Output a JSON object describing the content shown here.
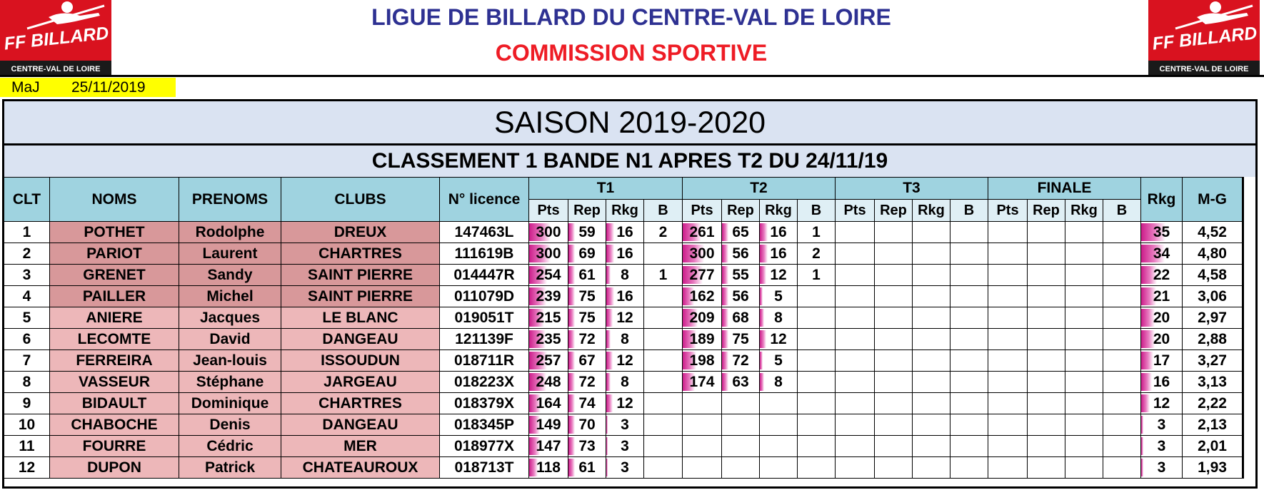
{
  "header": {
    "title": "LIGUE DE BILLARD DU CENTRE-VAL DE LOIRE",
    "subtitle": "COMMISSION SPORTIVE",
    "logo_main": "FF BILLARD",
    "logo_sub": "CENTRE-VAL DE LOIRE",
    "maj_label": "MaJ",
    "maj_date": "25/11/2019"
  },
  "season": "SAISON 2019-2020",
  "ranking_title": "CLASSEMENT 1 BANDE N1 APRES T2 DU 24/11/19",
  "columns": {
    "clt": "CLT",
    "noms": "NOMS",
    "prenoms": "PRENOMS",
    "clubs": "CLUBS",
    "licence": "N° licence",
    "groups": [
      "T1",
      "T2",
      "T3",
      "FINALE"
    ],
    "sub": [
      "Pts",
      "Rep",
      "Rkg",
      "B"
    ],
    "rkg": "Rkg",
    "mg": "M-G"
  },
  "colors": {
    "header_bg": "#9fd3e0",
    "band_bg": "#dae3f2",
    "name_dark": "#d8989a",
    "name_light": "#edb7b9",
    "bar": "#cc1c8a"
  },
  "rows": [
    {
      "clt": "1",
      "nom": "POTHET",
      "prenom": "Rodolphe",
      "club": "DREUX",
      "licence": "147463L",
      "t1": [
        "300",
        "59",
        "16",
        "2"
      ],
      "t2": [
        "261",
        "65",
        "16",
        "1"
      ],
      "rkg": "35",
      "mg": "4,52"
    },
    {
      "clt": "2",
      "nom": "PARIOT",
      "prenom": "Laurent",
      "club": "CHARTRES",
      "licence": "111619B",
      "t1": [
        "300",
        "69",
        "16",
        ""
      ],
      "t2": [
        "300",
        "56",
        "16",
        "2"
      ],
      "rkg": "34",
      "mg": "4,80"
    },
    {
      "clt": "3",
      "nom": "GRENET",
      "prenom": "Sandy",
      "club": "SAINT PIERRE",
      "licence": "014447R",
      "t1": [
        "254",
        "61",
        "8",
        "1"
      ],
      "t2": [
        "277",
        "55",
        "12",
        "1"
      ],
      "rkg": "22",
      "mg": "4,58"
    },
    {
      "clt": "4",
      "nom": "PAILLER",
      "prenom": "Michel",
      "club": "SAINT PIERRE",
      "licence": "011079D",
      "t1": [
        "239",
        "75",
        "16",
        ""
      ],
      "t2": [
        "162",
        "56",
        "5",
        ""
      ],
      "rkg": "21",
      "mg": "3,06"
    },
    {
      "clt": "5",
      "nom": "ANIERE",
      "prenom": "Jacques",
      "club": "LE BLANC",
      "licence": "019051T",
      "t1": [
        "215",
        "75",
        "12",
        ""
      ],
      "t2": [
        "209",
        "68",
        "8",
        ""
      ],
      "rkg": "20",
      "mg": "2,97"
    },
    {
      "clt": "6",
      "nom": "LECOMTE",
      "prenom": "David",
      "club": "DANGEAU",
      "licence": "121139F",
      "t1": [
        "235",
        "72",
        "8",
        ""
      ],
      "t2": [
        "189",
        "75",
        "12",
        ""
      ],
      "rkg": "20",
      "mg": "2,88"
    },
    {
      "clt": "7",
      "nom": "FERREIRA",
      "prenom": "Jean-louis",
      "club": "ISSOUDUN",
      "licence": "018711R",
      "t1": [
        "257",
        "67",
        "12",
        ""
      ],
      "t2": [
        "198",
        "72",
        "5",
        ""
      ],
      "rkg": "17",
      "mg": "3,27"
    },
    {
      "clt": "8",
      "nom": "VASSEUR",
      "prenom": "Stéphane",
      "club": "JARGEAU",
      "licence": "018223X",
      "t1": [
        "248",
        "72",
        "8",
        ""
      ],
      "t2": [
        "174",
        "63",
        "8",
        ""
      ],
      "rkg": "16",
      "mg": "3,13"
    },
    {
      "clt": "9",
      "nom": "BIDAULT",
      "prenom": "Dominique",
      "club": "CHARTRES",
      "licence": "018379X",
      "t1": [
        "164",
        "74",
        "12",
        ""
      ],
      "t2": [
        "",
        "",
        "",
        ""
      ],
      "rkg": "12",
      "mg": "2,22"
    },
    {
      "clt": "10",
      "nom": "CHABOCHE",
      "prenom": "Denis",
      "club": "DANGEAU",
      "licence": "018345P",
      "t1": [
        "149",
        "70",
        "3",
        ""
      ],
      "t2": [
        "",
        "",
        "",
        ""
      ],
      "rkg": "3",
      "mg": "2,13"
    },
    {
      "clt": "11",
      "nom": "FOURRE",
      "prenom": "Cédric",
      "club": "MER",
      "licence": "018977X",
      "t1": [
        "147",
        "73",
        "3",
        ""
      ],
      "t2": [
        "",
        "",
        "",
        ""
      ],
      "rkg": "3",
      "mg": "2,01"
    },
    {
      "clt": "12",
      "nom": "DUPON",
      "prenom": "Patrick",
      "club": "CHATEAUROUX",
      "licence": "018713T",
      "t1": [
        "118",
        "61",
        "3",
        ""
      ],
      "t2": [
        "",
        "",
        "",
        ""
      ],
      "rkg": "3",
      "mg": "1,93"
    }
  ]
}
